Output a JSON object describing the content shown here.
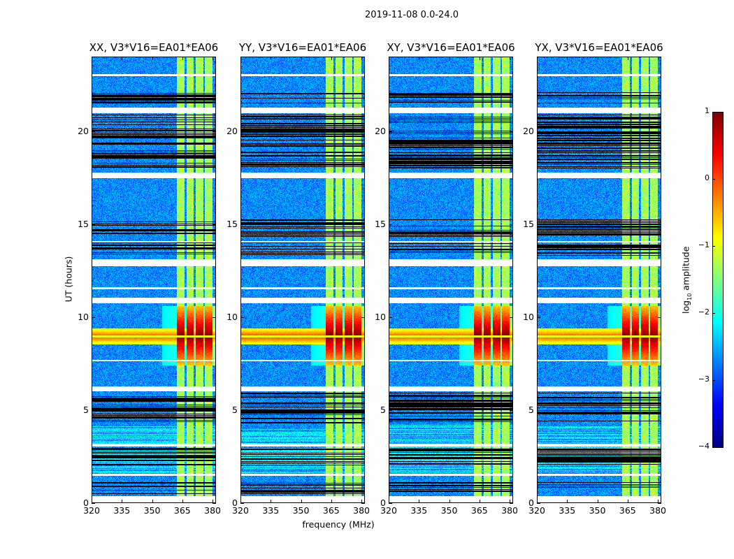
{
  "chart_data": {
    "type": "heatmap",
    "suptitle": "2019-11-08 0.0-24.0",
    "xlabel": "frequency (MHz)",
    "ylabel": "UT (hours)",
    "xlim": [
      320,
      381.7
    ],
    "ylim": [
      0,
      24
    ],
    "xticks": [
      "320",
      "335",
      "350",
      "365",
      "380"
    ],
    "xtick_values": [
      320,
      335,
      350,
      365,
      380
    ],
    "yticks": [
      "0",
      "5",
      "10",
      "15",
      "20"
    ],
    "ytick_values": [
      0,
      5,
      10,
      15,
      20
    ],
    "colormap": "jet",
    "clim": [
      -4,
      1
    ],
    "colorbar": {
      "label_main": "log",
      "label_sub": "10",
      "label_rest": " amplitude",
      "ticks": [
        "1",
        "0",
        "−1",
        "−2",
        "−3",
        "−4"
      ],
      "tick_values": [
        1,
        0,
        -1,
        -2,
        -3,
        -4
      ]
    },
    "panels": [
      {
        "title": "XX, V3*V16=EA01*EA06",
        "broadband_level": 0.0,
        "rfi_peak": 1.0
      },
      {
        "title": "YY, V3*V16=EA01*EA06",
        "broadband_level": 0.1,
        "rfi_peak": 1.0
      },
      {
        "title": "XY, V3*V16=EA01*EA06",
        "broadband_level": 0.0,
        "rfi_peak": 1.0
      },
      {
        "title": "YX, V3*V16=EA01*EA06",
        "broadband_level": 0.0,
        "rfi_peak": 1.0
      }
    ],
    "background_level": -2.7,
    "rfi_channels_mhz": [
      [
        362.5,
        366.2
      ],
      [
        367.2,
        371.0
      ],
      [
        372.0,
        375.6
      ],
      [
        376.6,
        380.3
      ]
    ],
    "rfi_level": -1.3,
    "rfi_strong_hours": [
      7.4,
      10.6
    ],
    "broadband_hours": [
      8.5,
      9.4
    ],
    "flagged_hours": [
      [
        0.0,
        0.35
      ],
      [
        6.0,
        6.25
      ],
      [
        10.75,
        11.05
      ],
      [
        12.75,
        13.1
      ],
      [
        17.5,
        17.8
      ],
      [
        21.0,
        21.3
      ],
      [
        14.0,
        14.1
      ],
      [
        11.5,
        11.6
      ],
      [
        23.0,
        23.1
      ],
      [
        7.6,
        7.7
      ],
      [
        3.0,
        3.15
      ],
      [
        1.45,
        1.55
      ]
    ],
    "dropout_hours": [
      [
        0.45,
        1.1
      ],
      [
        2.0,
        2.95
      ],
      [
        4.25,
        5.9
      ],
      [
        13.3,
        14.0
      ],
      [
        14.3,
        15.3
      ],
      [
        18.0,
        20.9
      ],
      [
        21.5,
        22.1
      ]
    ]
  }
}
